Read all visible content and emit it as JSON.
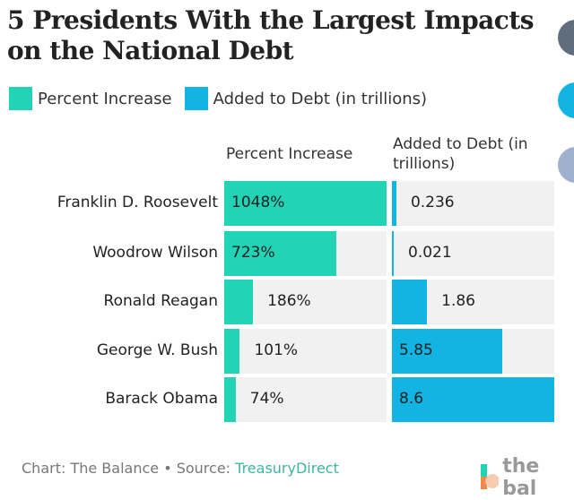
{
  "title": "5 Presidents With the Largest Impacts on the National Debt",
  "colors": {
    "percent": "#22d3b6",
    "debt": "#12b4e4",
    "panel": "#f1f1f1"
  },
  "chart_data": {
    "type": "bar",
    "title": "5 Presidents With the Largest Impacts on the National Debt",
    "categories": [
      "Franklin D. Roosevelt",
      "Woodrow Wilson",
      "Ronald Reagan",
      "George W. Bush",
      "Barack Obama"
    ],
    "series": [
      {
        "name": "Percent Increase",
        "header": "Percent Increase",
        "values": [
          1048,
          723,
          186,
          101,
          74
        ],
        "labels": [
          "1048%",
          "723%",
          "186%",
          "101%",
          "74%"
        ]
      },
      {
        "name": "Added to Debt (in trillions)",
        "header": "Added to Debt (in trillions)",
        "values": [
          0.236,
          0.021,
          1.86,
          5.85,
          8.6
        ],
        "labels": [
          "0.236",
          "0.021",
          "1.86",
          "5.85",
          "8.6"
        ]
      }
    ],
    "legend": "top-left",
    "orientation": "horizontal"
  },
  "footer": {
    "credit": "Chart: The Balance • Source: ",
    "source": "TreasuryDirect"
  },
  "logo": "the bal"
}
